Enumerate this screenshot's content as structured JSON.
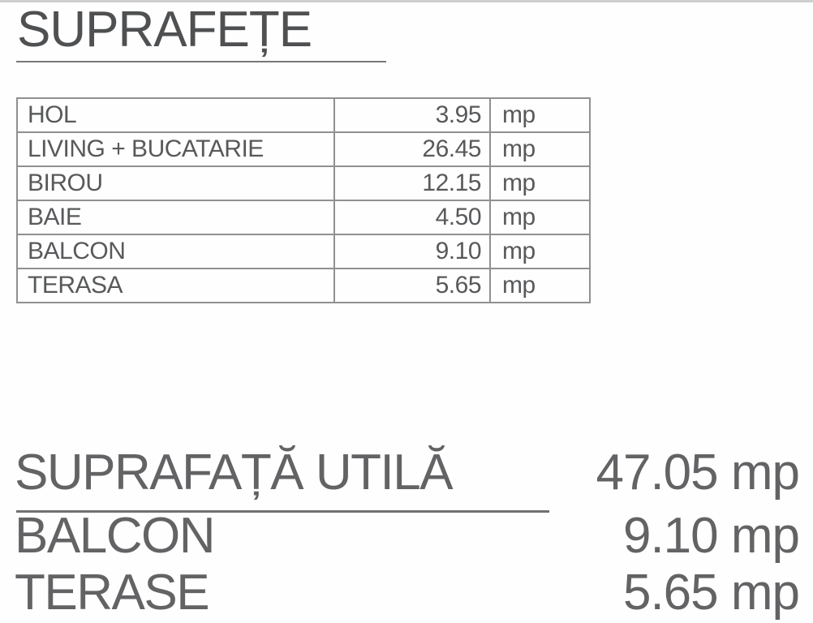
{
  "title": {
    "text": "SUPRAFEȚE"
  },
  "table": {
    "rows": [
      {
        "label": "HOL",
        "value": "3.95",
        "unit": "mp"
      },
      {
        "label": "LIVING + BUCATARIE",
        "value": "26.45",
        "unit": "mp"
      },
      {
        "label": "BIROU",
        "value": "12.15",
        "unit": "mp"
      },
      {
        "label": "BAIE",
        "value": "4.50",
        "unit": "mp"
      },
      {
        "label": "BALCON",
        "value": "9.10",
        "unit": "mp"
      },
      {
        "label": "TERASA",
        "value": "5.65",
        "unit": "mp"
      }
    ]
  },
  "summary": {
    "rows": [
      {
        "label": "SUPRAFAȚĂ UTILĂ",
        "value": "47.05 mp"
      },
      {
        "label": "BALCON",
        "value": "9.10 mp"
      },
      {
        "label": "TERASE",
        "value": "5.65 mp"
      }
    ]
  },
  "colors": {
    "text_dark": "#4f5052",
    "table_text": "#58595b",
    "summary_text": "#636365",
    "table_border": "#8f9092",
    "top_bar": "#cfcfcf"
  }
}
